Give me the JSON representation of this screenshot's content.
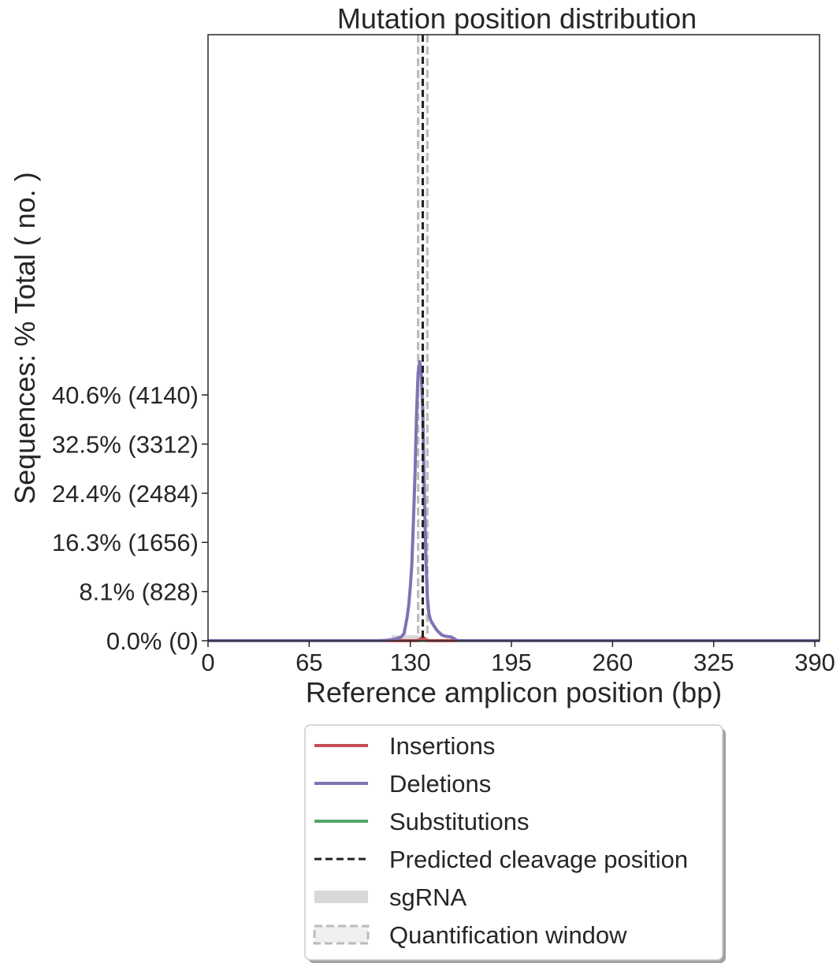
{
  "chart_data": {
    "type": "line",
    "title": "Mutation position distribution",
    "xlabel": "Reference amplicon position (bp)",
    "ylabel": "Sequences: % Total ( no. )",
    "xlim": [
      0,
      393
    ],
    "ylim": [
      0,
      10208
    ],
    "x_ticks": [
      0,
      65,
      130,
      195,
      260,
      325,
      390
    ],
    "y_ticks": [
      {
        "value": 0,
        "label": "0.0% (0)"
      },
      {
        "value": 828,
        "label": "8.1% (828)"
      },
      {
        "value": 1656,
        "label": "16.3% (1656)"
      },
      {
        "value": 2484,
        "label": "24.4% (2484)"
      },
      {
        "value": 3312,
        "label": "32.5% (3312)"
      },
      {
        "value": 4140,
        "label": "40.6% (4140)"
      }
    ],
    "grid": false,
    "legend_placement": "below",
    "series": [
      {
        "name": "Insertions",
        "color": "#c44e52",
        "points": [
          [
            0,
            0
          ],
          [
            135,
            0
          ],
          [
            136,
            10
          ],
          [
            137,
            40
          ],
          [
            138,
            60
          ],
          [
            139,
            40
          ],
          [
            140,
            10
          ],
          [
            141,
            0
          ],
          [
            393,
            0
          ]
        ]
      },
      {
        "name": "Deletions",
        "color": "#8172b2",
        "points": [
          [
            0,
            0
          ],
          [
            110,
            0
          ],
          [
            115,
            8
          ],
          [
            120,
            25
          ],
          [
            124,
            60
          ],
          [
            126,
            120
          ],
          [
            127,
            260
          ],
          [
            128,
            400
          ],
          [
            129,
            600
          ],
          [
            130,
            900
          ],
          [
            131,
            1300
          ],
          [
            132,
            2000
          ],
          [
            133,
            2800
          ],
          [
            134,
            3800
          ],
          [
            135,
            4500
          ],
          [
            136,
            4700
          ],
          [
            137,
            4500
          ],
          [
            138,
            3900
          ],
          [
            139,
            2500
          ],
          [
            140,
            1400
          ],
          [
            141,
            720
          ],
          [
            142,
            450
          ],
          [
            143,
            350
          ],
          [
            144,
            300
          ],
          [
            145,
            260
          ],
          [
            146,
            220
          ],
          [
            147,
            180
          ],
          [
            148,
            150
          ],
          [
            149,
            130
          ],
          [
            150,
            100
          ],
          [
            152,
            80
          ],
          [
            154,
            70
          ],
          [
            156,
            65
          ],
          [
            157,
            50
          ],
          [
            158,
            40
          ],
          [
            159,
            20
          ],
          [
            160,
            5
          ],
          [
            162,
            0
          ],
          [
            393,
            0
          ]
        ]
      },
      {
        "name": "Substitutions",
        "color": "#55a868",
        "points": [
          [
            0,
            2
          ],
          [
            393,
            2
          ]
        ]
      }
    ],
    "predicted_cleavage_position": {
      "name": "Predicted cleavage position",
      "x": 138,
      "color": "#222222"
    },
    "sgRNA": {
      "name": "sgRNA",
      "x_start": 118,
      "x_end": 138,
      "color": "#d9d9d9"
    },
    "quantification_window": {
      "name": "Quantification window",
      "x_start": 135,
      "x_end": 141,
      "color": "#bbbbbb"
    }
  }
}
